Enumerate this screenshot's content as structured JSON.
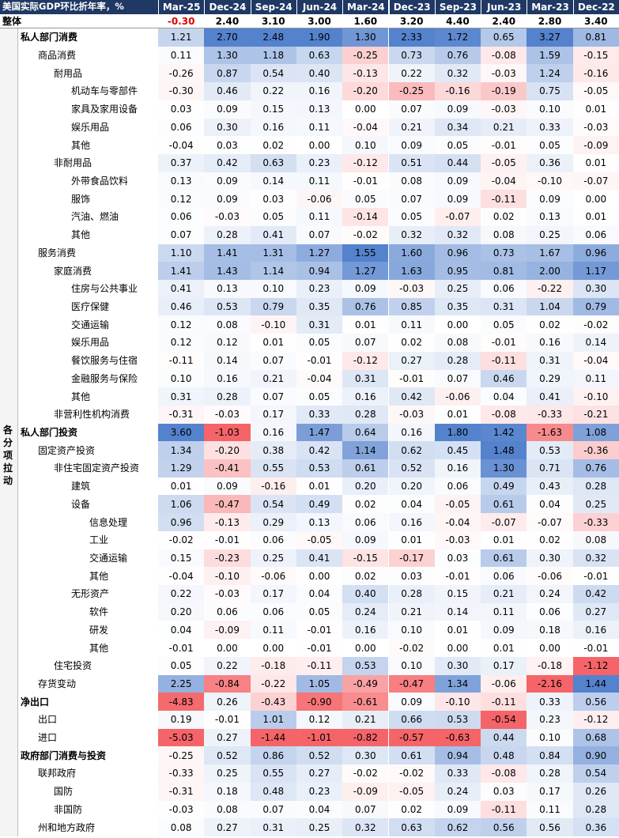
{
  "table": {
    "header": [
      "美国实际GDP环比折年率，%",
      "Mar-25",
      "Dec-24",
      "Sep-24",
      "Jun-24",
      "Mar-24",
      "Dec-23",
      "Sep-23",
      "Jun-23",
      "Mar-23",
      "Dec-22"
    ],
    "total": [
      "整体",
      "-0.30",
      "2.40",
      "3.10",
      "3.00",
      "1.60",
      "3.20",
      "4.40",
      "2.40",
      "2.80",
      "3.40"
    ],
    "group_label": "各分项拉动",
    "rows": [
      [
        "私人部门消费",
        "1.21",
        "2.70",
        "2.48",
        "1.90",
        "1.30",
        "2.33",
        "1.72",
        "0.65",
        "3.27",
        "0.81"
      ],
      [
        "商品消费",
        "0.11",
        "1.30",
        "1.18",
        "0.63",
        "-0.25",
        "0.73",
        "0.76",
        "-0.08",
        "1.59",
        "-0.15"
      ],
      [
        "耐用品",
        "-0.26",
        "0.87",
        "0.54",
        "0.40",
        "-0.13",
        "0.22",
        "0.32",
        "-0.03",
        "1.24",
        "-0.16"
      ],
      [
        "机动车与零部件",
        "-0.30",
        "0.46",
        "0.22",
        "0.16",
        "-0.20",
        "-0.25",
        "-0.16",
        "-0.19",
        "0.75",
        "-0.05"
      ],
      [
        "家具及家用设备",
        "0.03",
        "0.09",
        "0.15",
        "0.13",
        "0.00",
        "0.07",
        "0.09",
        "-0.03",
        "0.10",
        "0.01"
      ],
      [
        "娱乐用品",
        "0.06",
        "0.30",
        "0.16",
        "0.11",
        "-0.04",
        "0.21",
        "0.34",
        "0.21",
        "0.33",
        "-0.03"
      ],
      [
        "其他",
        "-0.04",
        "0.03",
        "0.02",
        "0.00",
        "0.10",
        "0.09",
        "0.05",
        "-0.01",
        "0.05",
        "-0.09"
      ],
      [
        "非耐用品",
        "0.37",
        "0.42",
        "0.63",
        "0.23",
        "-0.12",
        "0.51",
        "0.44",
        "-0.05",
        "0.36",
        "0.01"
      ],
      [
        "外带食品饮料",
        "0.13",
        "0.09",
        "0.14",
        "0.11",
        "-0.01",
        "0.08",
        "0.09",
        "-0.04",
        "-0.10",
        "-0.07"
      ],
      [
        "服饰",
        "0.12",
        "0.09",
        "0.03",
        "-0.06",
        "0.05",
        "0.07",
        "0.09",
        "-0.11",
        "0.09",
        "0.00"
      ],
      [
        "汽油、燃油",
        "0.06",
        "-0.03",
        "0.05",
        "0.11",
        "-0.14",
        "0.05",
        "-0.07",
        "0.02",
        "0.13",
        "0.01"
      ],
      [
        "其他",
        "0.07",
        "0.28",
        "0.41",
        "0.07",
        "-0.02",
        "0.32",
        "0.32",
        "0.08",
        "0.25",
        "0.06"
      ],
      [
        "服务消费",
        "1.10",
        "1.41",
        "1.31",
        "1.27",
        "1.55",
        "1.60",
        "0.96",
        "0.73",
        "1.67",
        "0.96"
      ],
      [
        "家庭消费",
        "1.41",
        "1.43",
        "1.14",
        "0.94",
        "1.27",
        "1.63",
        "0.95",
        "0.81",
        "2.00",
        "1.17"
      ],
      [
        "住房与公共事业",
        "0.41",
        "0.13",
        "0.10",
        "0.23",
        "0.09",
        "-0.03",
        "0.25",
        "0.06",
        "-0.22",
        "0.30"
      ],
      [
        "医疗保健",
        "0.46",
        "0.53",
        "0.79",
        "0.35",
        "0.76",
        "0.85",
        "0.35",
        "0.31",
        "1.04",
        "0.79"
      ],
      [
        "交通运输",
        "0.12",
        "0.08",
        "-0.10",
        "0.31",
        "0.01",
        "0.11",
        "0.00",
        "0.05",
        "0.02",
        "-0.02"
      ],
      [
        "娱乐用品",
        "0.12",
        "0.12",
        "0.01",
        "0.05",
        "0.07",
        "0.02",
        "0.08",
        "-0.01",
        "0.16",
        "0.14"
      ],
      [
        "餐饮服务与住宿",
        "-0.11",
        "0.14",
        "0.07",
        "-0.01",
        "-0.12",
        "0.27",
        "0.28",
        "-0.11",
        "0.31",
        "-0.04"
      ],
      [
        "金融服务与保险",
        "0.10",
        "0.16",
        "0.21",
        "-0.04",
        "0.31",
        "-0.01",
        "0.07",
        "0.46",
        "0.29",
        "0.11"
      ],
      [
        "其他",
        "0.31",
        "0.28",
        "0.07",
        "0.05",
        "0.16",
        "0.42",
        "-0.06",
        "0.04",
        "0.41",
        "-0.10"
      ],
      [
        "非营利性机构消费",
        "-0.31",
        "-0.03",
        "0.17",
        "0.33",
        "0.28",
        "-0.03",
        "0.01",
        "-0.08",
        "-0.33",
        "-0.21"
      ],
      [
        "私人部门投资",
        "3.60",
        "-1.03",
        "0.16",
        "1.47",
        "0.64",
        "0.16",
        "1.80",
        "1.42",
        "-1.63",
        "1.08"
      ],
      [
        "固定资产投资",
        "1.34",
        "-0.20",
        "0.38",
        "0.42",
        "1.14",
        "0.62",
        "0.45",
        "1.48",
        "0.53",
        "-0.36"
      ],
      [
        "非住宅固定资产投资",
        "1.29",
        "-0.41",
        "0.55",
        "0.53",
        "0.61",
        "0.52",
        "0.16",
        "1.30",
        "0.71",
        "0.76"
      ],
      [
        "建筑",
        "0.01",
        "0.09",
        "-0.16",
        "0.01",
        "0.20",
        "0.20",
        "0.06",
        "0.49",
        "0.43",
        "0.28"
      ],
      [
        "设备",
        "1.06",
        "-0.47",
        "0.54",
        "0.49",
        "0.02",
        "0.04",
        "-0.05",
        "0.61",
        "0.04",
        "0.25"
      ],
      [
        "信息处理",
        "0.96",
        "-0.13",
        "0.29",
        "0.13",
        "0.06",
        "0.16",
        "-0.04",
        "-0.07",
        "-0.07",
        "-0.33"
      ],
      [
        "工业",
        "-0.02",
        "-0.01",
        "0.06",
        "-0.05",
        "0.09",
        "0.01",
        "-0.03",
        "0.01",
        "0.02",
        "0.08"
      ],
      [
        "交通运输",
        "0.15",
        "-0.23",
        "0.25",
        "0.41",
        "-0.15",
        "-0.17",
        "0.03",
        "0.61",
        "0.30",
        "0.32"
      ],
      [
        "其他",
        "-0.04",
        "-0.10",
        "-0.06",
        "0.00",
        "0.02",
        "0.03",
        "-0.01",
        "0.06",
        "-0.06",
        "-0.01"
      ],
      [
        "无形资产",
        "0.22",
        "-0.03",
        "0.17",
        "0.04",
        "0.40",
        "0.28",
        "0.15",
        "0.21",
        "0.24",
        "0.42"
      ],
      [
        "软件",
        "0.20",
        "0.06",
        "0.06",
        "0.05",
        "0.24",
        "0.21",
        "0.14",
        "0.11",
        "0.06",
        "0.27"
      ],
      [
        "研发",
        "0.04",
        "-0.09",
        "0.11",
        "-0.01",
        "0.16",
        "0.10",
        "0.01",
        "0.09",
        "0.18",
        "0.16"
      ],
      [
        "其他",
        "-0.01",
        "0.00",
        "0.00",
        "-0.01",
        "0.00",
        "-0.02",
        "0.00",
        "0.01",
        "0.00",
        "-0.01"
      ],
      [
        "住宅投资",
        "0.05",
        "0.22",
        "-0.18",
        "-0.11",
        "0.53",
        "0.10",
        "0.30",
        "0.17",
        "-0.18",
        "-1.12"
      ],
      [
        "存货变动",
        "2.25",
        "-0.84",
        "-0.22",
        "1.05",
        "-0.49",
        "-0.47",
        "1.34",
        "-0.06",
        "-2.16",
        "1.44"
      ],
      [
        "净出口",
        "-4.83",
        "0.26",
        "-0.43",
        "-0.90",
        "-0.61",
        "0.09",
        "-0.10",
        "-0.11",
        "0.33",
        "0.56"
      ],
      [
        "出口",
        "0.19",
        "-0.01",
        "1.01",
        "0.12",
        "0.21",
        "0.66",
        "0.53",
        "-0.54",
        "0.23",
        "-0.12"
      ],
      [
        "进口",
        "-5.03",
        "0.27",
        "-1.44",
        "-1.01",
        "-0.82",
        "-0.57",
        "-0.63",
        "0.44",
        "0.10",
        "0.68"
      ],
      [
        "政府部门消费与投资",
        "-0.25",
        "0.52",
        "0.86",
        "0.52",
        "0.30",
        "0.61",
        "0.94",
        "0.48",
        "0.84",
        "0.90"
      ],
      [
        "联邦政府",
        "-0.33",
        "0.25",
        "0.55",
        "0.27",
        "-0.02",
        "-0.02",
        "0.33",
        "-0.08",
        "0.28",
        "0.54"
      ],
      [
        "国防",
        "-0.31",
        "0.18",
        "0.48",
        "0.23",
        "-0.09",
        "-0.05",
        "0.24",
        "0.03",
        "0.17",
        "0.26"
      ],
      [
        "非国防",
        "-0.03",
        "0.08",
        "0.07",
        "0.04",
        "0.07",
        "0.02",
        "0.09",
        "-0.11",
        "0.11",
        "0.28"
      ],
      [
        "州和地方政府",
        "0.08",
        "0.27",
        "0.31",
        "0.25",
        "0.32",
        "0.63",
        "0.62",
        "0.56",
        "0.56",
        "0.36"
      ]
    ]
  }
}
